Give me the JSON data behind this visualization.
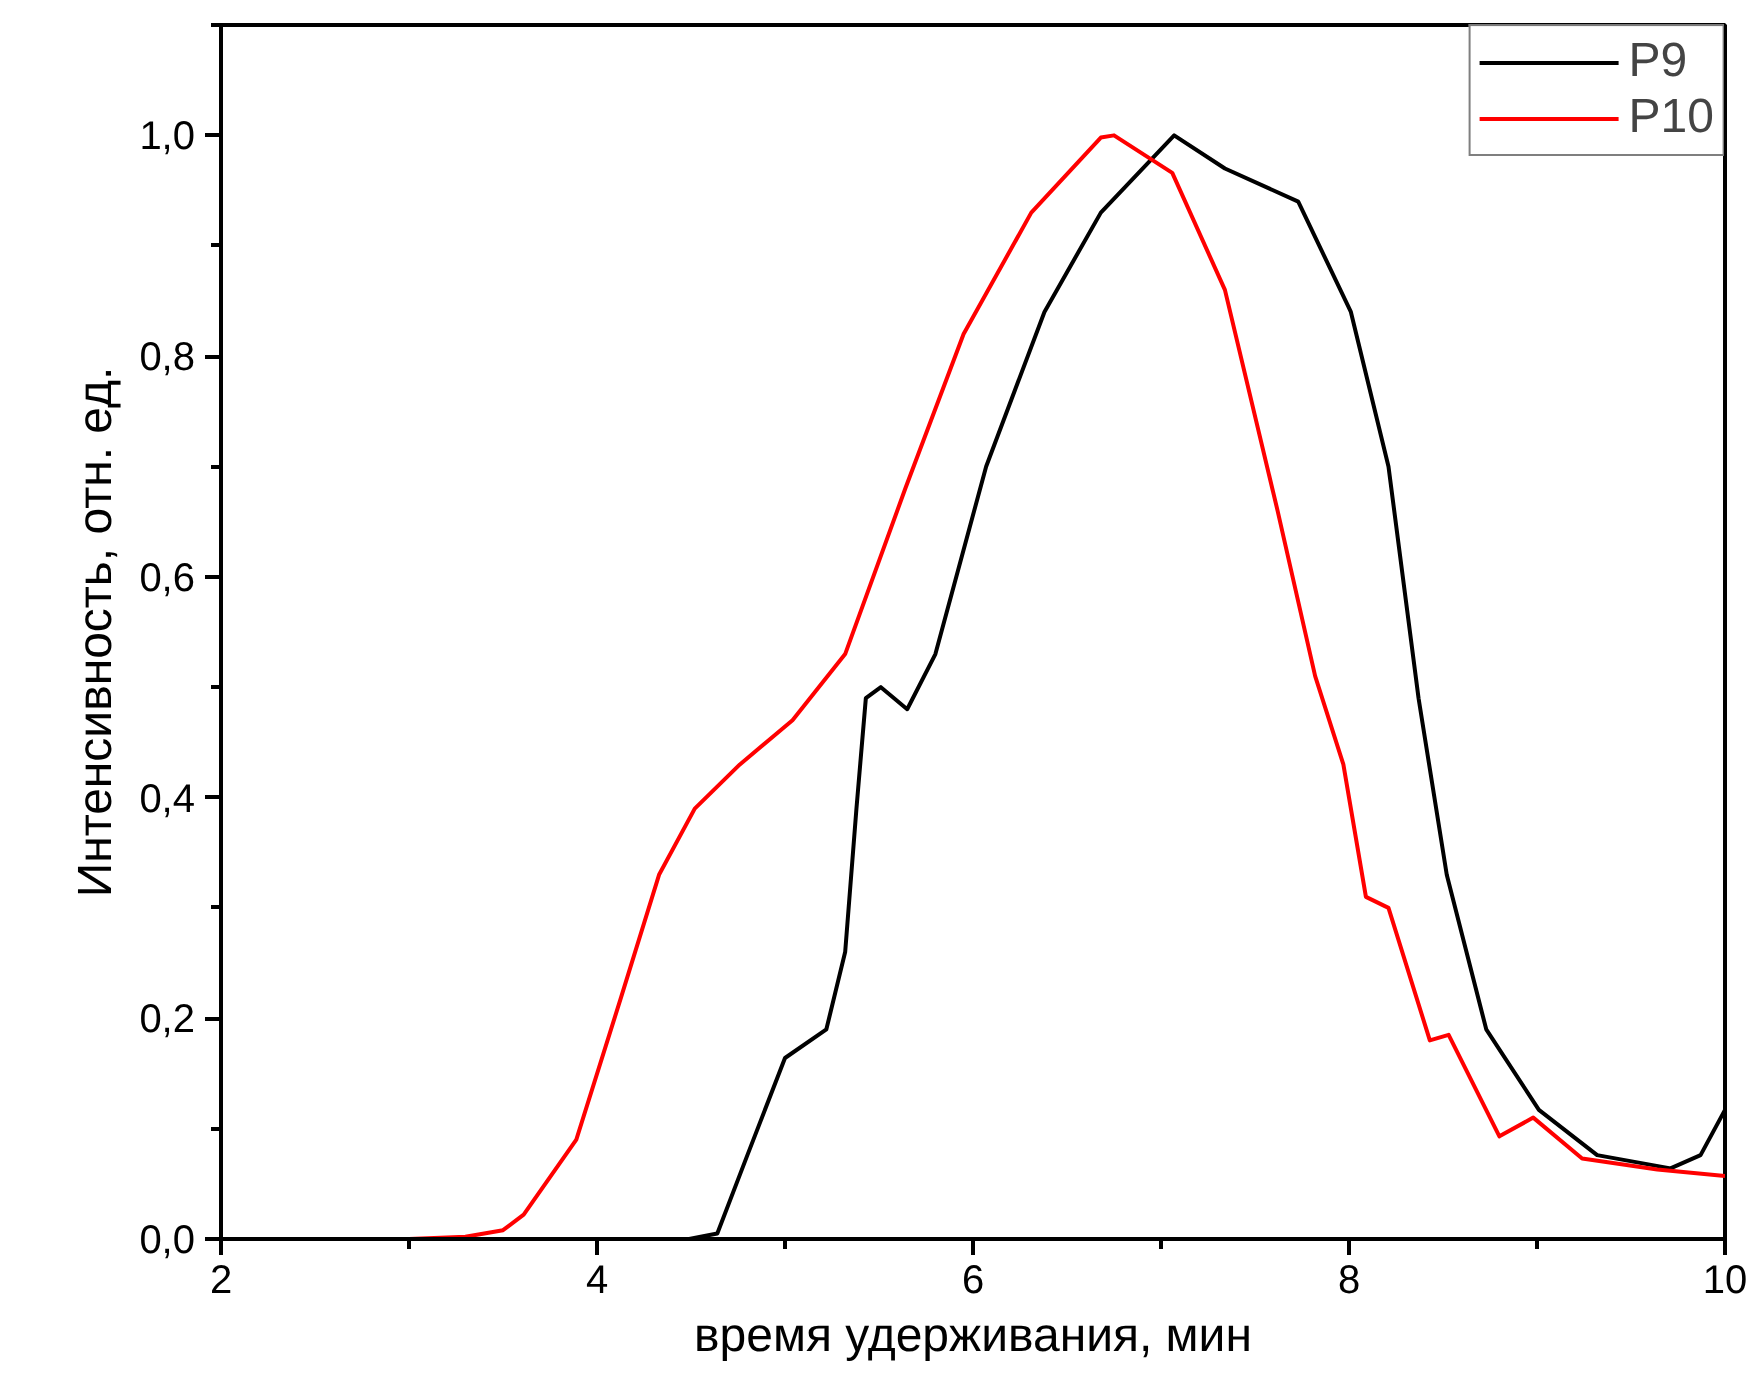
{
  "chart_data": {
    "type": "line",
    "xlabel": "время удерживания, мин",
    "ylabel": "Интенсивность, отн. ед.",
    "xlim": [
      2,
      10
    ],
    "ylim": [
      0,
      1.1
    ],
    "xticks": [
      2,
      4,
      6,
      8,
      10
    ],
    "yticks": [
      {
        "value": 0,
        "label": "0,0"
      },
      {
        "value": 0.2,
        "label": "0,2"
      },
      {
        "value": 0.4,
        "label": "0,4"
      },
      {
        "value": 0.6,
        "label": "0,6"
      },
      {
        "value": 0.8,
        "label": "0,8"
      },
      {
        "value": 1.0,
        "label": "1,0"
      }
    ],
    "grid": false,
    "legend": "top right",
    "line_style": "solid",
    "series": [
      {
        "name": "P9",
        "color": "#000000",
        "x": [
          2,
          3,
          4,
          4.49,
          4.64,
          4.8,
          5.0,
          5.22,
          5.32,
          5.38,
          5.43,
          5.51,
          5.65,
          5.8,
          6.07,
          6.38,
          6.68,
          7.07,
          7.34,
          7.73,
          8.01,
          8.21,
          8.37,
          8.52,
          8.73,
          9.01,
          9.32,
          9.71,
          9.87,
          10.0
        ],
        "values": [
          0,
          0,
          0,
          0,
          0.005,
          0.076,
          0.164,
          0.19,
          0.26,
          0.39,
          0.49,
          0.5,
          0.48,
          0.53,
          0.7,
          0.84,
          0.93,
          1.0,
          0.97,
          0.94,
          0.84,
          0.7,
          0.49,
          0.33,
          0.19,
          0.117,
          0.076,
          0.064,
          0.076,
          0.117
        ]
      },
      {
        "name": "P10",
        "color": "#ff0000",
        "x": [
          2,
          3,
          3.3,
          3.5,
          3.61,
          3.89,
          4.13,
          4.33,
          4.52,
          4.76,
          5.04,
          5.32,
          5.64,
          5.95,
          6.31,
          6.68,
          6.75,
          7.06,
          7.34,
          7.62,
          7.82,
          7.97,
          8.09,
          8.21,
          8.43,
          8.53,
          8.8,
          8.98,
          9.24,
          9.64,
          10.0
        ],
        "values": [
          0,
          0,
          0.002,
          0.008,
          0.022,
          0.09,
          0.22,
          0.33,
          0.39,
          0.43,
          0.47,
          0.53,
          0.68,
          0.82,
          0.93,
          0.998,
          1.0,
          0.966,
          0.86,
          0.66,
          0.51,
          0.43,
          0.31,
          0.3,
          0.18,
          0.185,
          0.093,
          0.11,
          0.073,
          0.063,
          0.057
        ]
      }
    ]
  }
}
